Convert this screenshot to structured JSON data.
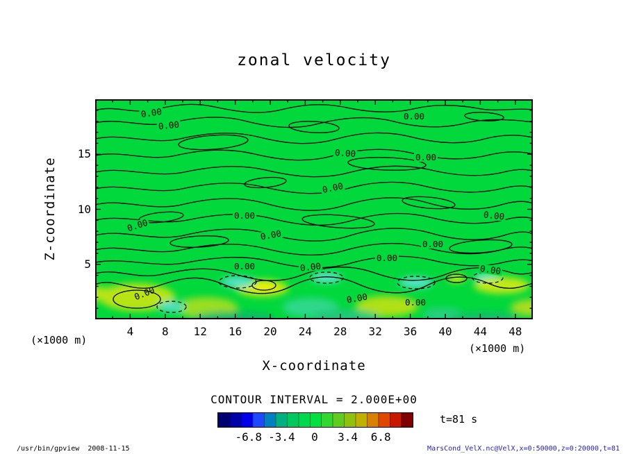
{
  "title": "zonal velocity",
  "plot": {
    "contour_label": "0.00"
  },
  "x_axis": {
    "label": "X-coordinate",
    "unit": "(×1000 m)"
  },
  "y_axis": {
    "label": "Z-coordinate",
    "unit": "(×1000 m)"
  },
  "contour_info": "CONTOUR INTERVAL = 2.000E+00",
  "time_label": "t=81 s",
  "footer": {
    "left": "/usr/bin/gpview  2008-11-15",
    "right": "MarsCond_VelX.nc@VelX,x=0:50000,z=0:20000,t=81"
  },
  "chart_data": {
    "type": "heatmap",
    "title": "zonal velocity",
    "xlabel": "X-coordinate",
    "ylabel": "Z-coordinate",
    "x_unit": "(×1000 m)",
    "y_unit": "(×1000 m)",
    "x_range": [
      0,
      50
    ],
    "y_range": [
      0,
      20
    ],
    "x_ticks": [
      4,
      8,
      12,
      16,
      20,
      24,
      28,
      32,
      36,
      40,
      44,
      48
    ],
    "x_minor_step": 2,
    "y_ticks": [
      5,
      10,
      15
    ],
    "y_minor_step": 1,
    "grid": false,
    "contour_interval": 2.0,
    "contour_level_labeled": "0.00",
    "colorbar_ticks": [
      "-6.8",
      "-3.4",
      "0",
      "3.4",
      "6.8"
    ],
    "colorbar_colors": [
      "#000070",
      "#0000a8",
      "#0000e8",
      "#2048ff",
      "#0080c0",
      "#00b080",
      "#00c860",
      "#00d850",
      "#00e040",
      "#30d830",
      "#60cc20",
      "#90c010",
      "#c0b000",
      "#d88000",
      "#e04800",
      "#c81800",
      "#800000"
    ],
    "field_background": "#00d83c",
    "time": "t=81 s",
    "annotation": "Zonal velocity field is approximately 0 (uniform green with meandering 0.00 contour lines) over most of the domain; a turbulent band below z≈4 (×1000 m) contains small positive anomalies (yellow patches, solid closed contours) and negative anomalies (cyan patches, dashed closed contours)."
  }
}
